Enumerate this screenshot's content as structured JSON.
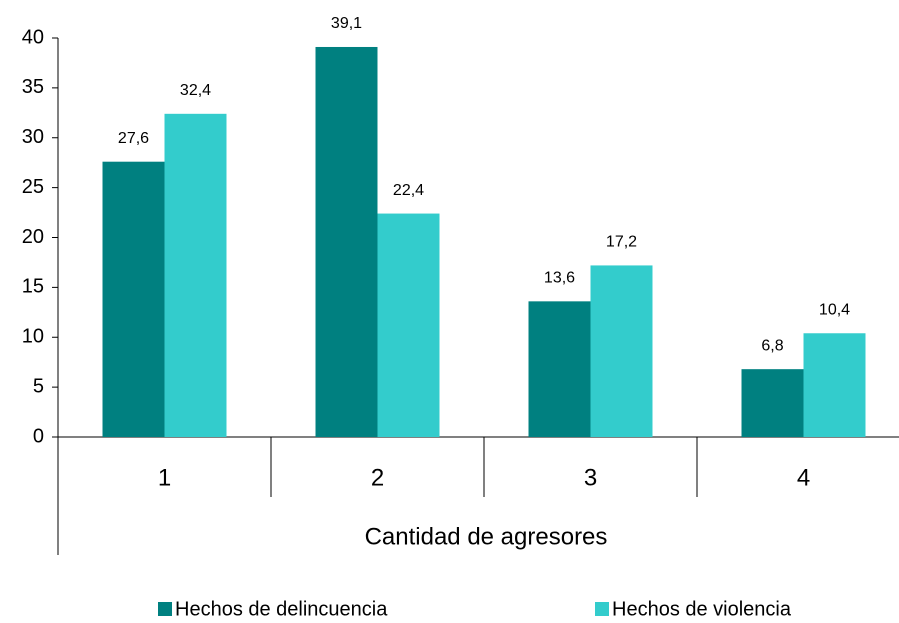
{
  "chart_data": {
    "type": "bar",
    "x_label": "Cantidad de agresores",
    "categories": [
      "1",
      "2",
      "3",
      "4"
    ],
    "series": [
      {
        "name": "Hechos de delincuencia",
        "color": "#008080",
        "values": [
          27.6,
          39.1,
          13.6,
          6.8
        ],
        "value_labels": [
          "27,6",
          "39,1",
          "13,6",
          "6,8"
        ]
      },
      {
        "name": "Hechos de violencia",
        "color": "#33cccc",
        "values": [
          32.4,
          22.4,
          17.2,
          10.4
        ],
        "value_labels": [
          "32,4",
          "22,4",
          "17,2",
          "10,4"
        ]
      }
    ],
    "ylim": [
      0,
      40
    ],
    "yticks": [
      0,
      5,
      10,
      15,
      20,
      25,
      30,
      35,
      40
    ],
    "grid": false,
    "legend": "bottom"
  }
}
